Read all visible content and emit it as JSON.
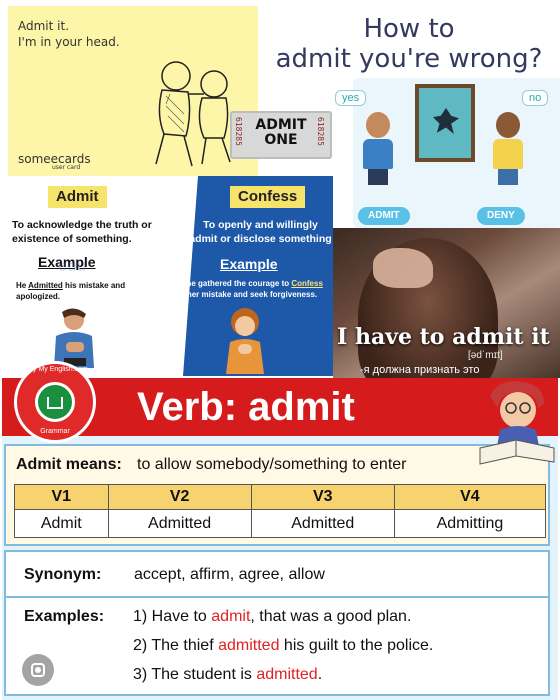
{
  "ecard": {
    "line1": "Admit it.",
    "line2": "I'm in your head.",
    "brand": "someecards",
    "brand_sub": "user card"
  },
  "ticket": {
    "line1": "ADMIT",
    "line2": "ONE",
    "serial": "618285"
  },
  "howto": {
    "title_line1": "How to",
    "title_line2": "admit you're wrong?",
    "bubble_yes": "yes",
    "bubble_no": "no",
    "label_admit": "ADMIT",
    "label_deny": "DENY"
  },
  "definitions": {
    "admit_tag": "Admit",
    "admit_def": "To acknowledge the truth or existence of something.",
    "admit_example_head": "Example",
    "admit_example_pre": "He ",
    "admit_example_word": "Admitted",
    "admit_example_post": " his mistake and apologized.",
    "confess_tag": "Confess",
    "confess_def": "To openly and willingly admit or disclose something",
    "confess_example_head": "Example",
    "confess_example_pre": "She gathered the courage to ",
    "confess_example_word": "Confess",
    "confess_example_post": " her mistake and seek forgiveness."
  },
  "photo": {
    "caption": "I have to admit it",
    "phonetic": "[ədˈmɪt]",
    "translation": "-я должна признать это"
  },
  "logo": {
    "top_text": "Only My English.com",
    "bottom_text": "Grammar"
  },
  "banner": {
    "title": "Verb: admit"
  },
  "means": {
    "label": "Admit means:",
    "value": "to allow somebody/something to enter"
  },
  "forms": {
    "headers": [
      "V1",
      "V2",
      "V3",
      "V4"
    ],
    "values": [
      "Admit",
      "Admitted",
      "Admitted",
      "Admitting"
    ]
  },
  "synonym": {
    "label": "Synonym:",
    "value": "accept, affirm, agree, allow"
  },
  "examples": {
    "label": "Examples:",
    "lines": [
      {
        "pre": "1) Have to ",
        "word": "admit",
        "post": ", that was a good plan."
      },
      {
        "pre": "2) The thief ",
        "word": "admitted",
        "post": " his guilt to the police."
      },
      {
        "pre": "3) The student is ",
        "word": "admitted",
        "post": "."
      }
    ]
  },
  "colors": {
    "banner_red": "#d51b1b",
    "table_header": "#f6d36f",
    "highlight_red": "#e02222",
    "confess_blue": "#1e58a8",
    "tag_yellow": "#f5e36a"
  }
}
